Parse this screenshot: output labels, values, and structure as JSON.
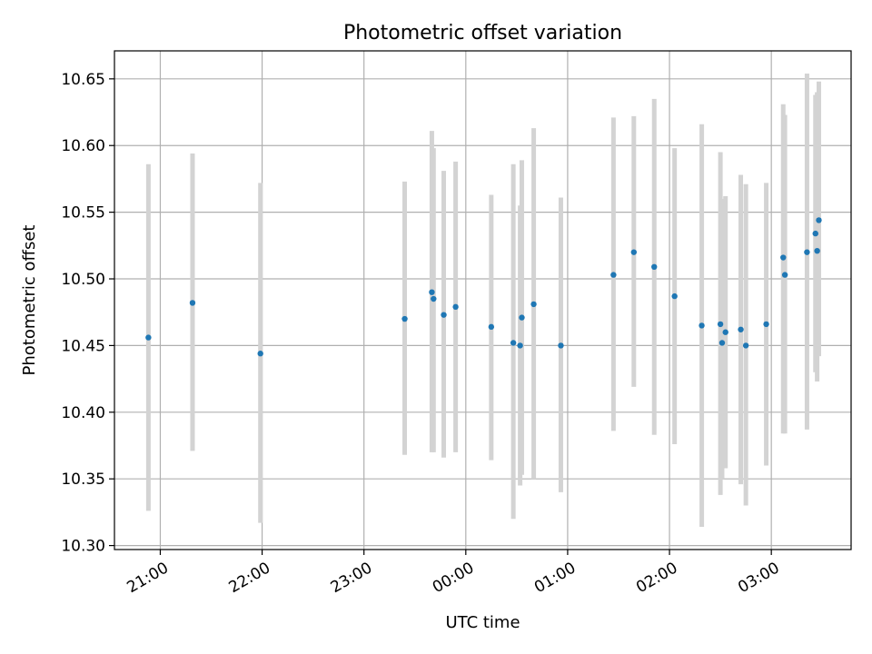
{
  "chart_data": {
    "type": "scatter",
    "title": "Photometric offset variation",
    "xlabel": "UTC time",
    "ylabel": "Photometric offset",
    "date": "2000-01-01",
    "xlim": [
      "2000-01-01T20:33",
      "2000-01-02T03:47"
    ],
    "ylim": [
      10.297,
      10.671
    ],
    "xticks": [
      "21:00",
      "22:00",
      "23:00",
      "00:00",
      "01:00",
      "02:00",
      "03:00"
    ],
    "yticks": [
      "10.30",
      "10.35",
      "10.40",
      "10.45",
      "10.50",
      "10.55",
      "10.60",
      "10.65"
    ],
    "grid": true,
    "point_color": "#1f77b4",
    "errorbar_color": "#d3d3d3",
    "points": [
      {
        "t": "2000-01-01T20:53",
        "y": 10.456,
        "lo": 10.326,
        "hi": 10.586
      },
      {
        "t": "2000-01-01T21:19",
        "y": 10.482,
        "lo": 10.371,
        "hi": 10.594
      },
      {
        "t": "2000-01-01T21:59",
        "y": 10.444,
        "lo": 10.317,
        "hi": 10.572
      },
      {
        "t": "2000-01-01T23:24",
        "y": 10.47,
        "lo": 10.368,
        "hi": 10.573
      },
      {
        "t": "2000-01-01T23:40",
        "y": 10.49,
        "lo": 10.37,
        "hi": 10.611
      },
      {
        "t": "2000-01-01T23:41",
        "y": 10.485,
        "lo": 10.37,
        "hi": 10.598
      },
      {
        "t": "2000-01-01T23:47",
        "y": 10.473,
        "lo": 10.366,
        "hi": 10.581
      },
      {
        "t": "2000-01-01T23:54",
        "y": 10.479,
        "lo": 10.37,
        "hi": 10.588
      },
      {
        "t": "2000-01-02T00:15",
        "y": 10.464,
        "lo": 10.364,
        "hi": 10.563
      },
      {
        "t": "2000-01-02T00:28",
        "y": 10.452,
        "lo": 10.32,
        "hi": 10.586
      },
      {
        "t": "2000-01-02T00:32",
        "y": 10.45,
        "lo": 10.345,
        "hi": 10.555
      },
      {
        "t": "2000-01-02T00:33",
        "y": 10.471,
        "lo": 10.353,
        "hi": 10.589
      },
      {
        "t": "2000-01-02T00:40",
        "y": 10.481,
        "lo": 10.35,
        "hi": 10.613
      },
      {
        "t": "2000-01-02T00:56",
        "y": 10.45,
        "lo": 10.34,
        "hi": 10.561
      },
      {
        "t": "2000-01-02T01:27",
        "y": 10.503,
        "lo": 10.386,
        "hi": 10.621
      },
      {
        "t": "2000-01-02T01:39",
        "y": 10.52,
        "lo": 10.419,
        "hi": 10.622
      },
      {
        "t": "2000-01-02T01:51",
        "y": 10.509,
        "lo": 10.383,
        "hi": 10.635
      },
      {
        "t": "2000-01-02T02:03",
        "y": 10.487,
        "lo": 10.376,
        "hi": 10.598
      },
      {
        "t": "2000-01-02T02:19",
        "y": 10.465,
        "lo": 10.314,
        "hi": 10.616
      },
      {
        "t": "2000-01-02T02:30",
        "y": 10.466,
        "lo": 10.338,
        "hi": 10.595
      },
      {
        "t": "2000-01-02T02:31",
        "y": 10.452,
        "lo": 10.35,
        "hi": 10.56
      },
      {
        "t": "2000-01-02T02:33",
        "y": 10.46,
        "lo": 10.358,
        "hi": 10.562
      },
      {
        "t": "2000-01-02T02:42",
        "y": 10.462,
        "lo": 10.346,
        "hi": 10.578
      },
      {
        "t": "2000-01-02T02:45",
        "y": 10.45,
        "lo": 10.33,
        "hi": 10.571
      },
      {
        "t": "2000-01-02T02:57",
        "y": 10.466,
        "lo": 10.36,
        "hi": 10.572
      },
      {
        "t": "2000-01-02T03:07",
        "y": 10.516,
        "lo": 10.384,
        "hi": 10.631
      },
      {
        "t": "2000-01-02T03:08",
        "y": 10.503,
        "lo": 10.384,
        "hi": 10.623
      },
      {
        "t": "2000-01-02T03:21",
        "y": 10.52,
        "lo": 10.387,
        "hi": 10.654
      },
      {
        "t": "2000-01-02T03:26",
        "y": 10.534,
        "lo": 10.43,
        "hi": 10.638
      },
      {
        "t": "2000-01-02T03:27",
        "y": 10.521,
        "lo": 10.423,
        "hi": 10.64
      },
      {
        "t": "2000-01-02T03:28",
        "y": 10.544,
        "lo": 10.442,
        "hi": 10.648
      }
    ]
  }
}
